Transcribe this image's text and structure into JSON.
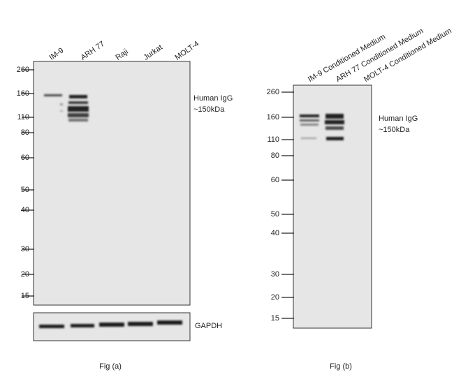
{
  "panel_a": {
    "lanes": [
      "IM-9",
      "ARH 77",
      "Raji",
      "Jurkat",
      "MOLT-4"
    ],
    "markers": [
      260,
      160,
      110,
      80,
      60,
      50,
      40,
      30,
      20,
      15
    ],
    "band_label": [
      "Human IgG",
      "~150kDa"
    ],
    "loading_control": "GAPDH",
    "caption": "Fig (a)"
  },
  "panel_b": {
    "lanes": [
      "IM-9 Conditioned Medium",
      "ARH 77 Conditioned Medium",
      "MOLT-4 Conditioned Medium"
    ],
    "markers": [
      260,
      160,
      110,
      80,
      60,
      50,
      40,
      30,
      20,
      15
    ],
    "band_label": [
      "Human IgG",
      "~150kDa"
    ],
    "caption": "Fig (b)"
  }
}
